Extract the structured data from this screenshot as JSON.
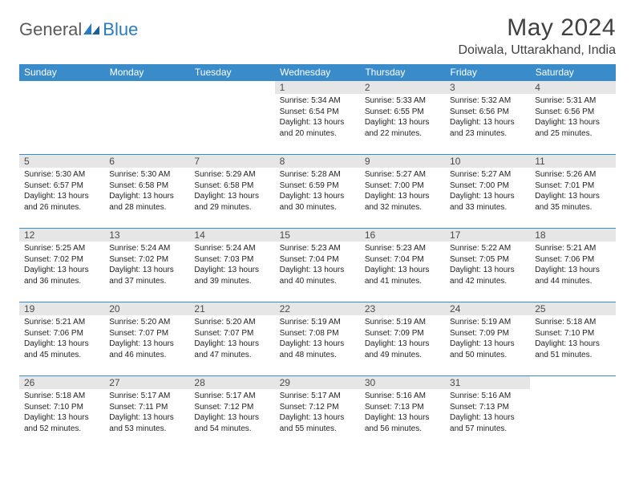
{
  "logo": {
    "text1": "General",
    "text2": "Blue"
  },
  "title": "May 2024",
  "location": "Doiwala, Uttarakhand, India",
  "colors": {
    "header_bg": "#3a8bc9",
    "header_fg": "#ffffff",
    "daynum_bg": "#e6e6e6",
    "border": "#3a8bc9",
    "logo_gray": "#5a5a5a",
    "logo_blue": "#2b7bbf"
  },
  "day_headers": [
    "Sunday",
    "Monday",
    "Tuesday",
    "Wednesday",
    "Thursday",
    "Friday",
    "Saturday"
  ],
  "weeks": [
    [
      {
        "day": "",
        "sunrise": "",
        "sunset": "",
        "daylight": ""
      },
      {
        "day": "",
        "sunrise": "",
        "sunset": "",
        "daylight": ""
      },
      {
        "day": "",
        "sunrise": "",
        "sunset": "",
        "daylight": ""
      },
      {
        "day": "1",
        "sunrise": "Sunrise: 5:34 AM",
        "sunset": "Sunset: 6:54 PM",
        "daylight": "Daylight: 13 hours and 20 minutes."
      },
      {
        "day": "2",
        "sunrise": "Sunrise: 5:33 AM",
        "sunset": "Sunset: 6:55 PM",
        "daylight": "Daylight: 13 hours and 22 minutes."
      },
      {
        "day": "3",
        "sunrise": "Sunrise: 5:32 AM",
        "sunset": "Sunset: 6:56 PM",
        "daylight": "Daylight: 13 hours and 23 minutes."
      },
      {
        "day": "4",
        "sunrise": "Sunrise: 5:31 AM",
        "sunset": "Sunset: 6:56 PM",
        "daylight": "Daylight: 13 hours and 25 minutes."
      }
    ],
    [
      {
        "day": "5",
        "sunrise": "Sunrise: 5:30 AM",
        "sunset": "Sunset: 6:57 PM",
        "daylight": "Daylight: 13 hours and 26 minutes."
      },
      {
        "day": "6",
        "sunrise": "Sunrise: 5:30 AM",
        "sunset": "Sunset: 6:58 PM",
        "daylight": "Daylight: 13 hours and 28 minutes."
      },
      {
        "day": "7",
        "sunrise": "Sunrise: 5:29 AM",
        "sunset": "Sunset: 6:58 PM",
        "daylight": "Daylight: 13 hours and 29 minutes."
      },
      {
        "day": "8",
        "sunrise": "Sunrise: 5:28 AM",
        "sunset": "Sunset: 6:59 PM",
        "daylight": "Daylight: 13 hours and 30 minutes."
      },
      {
        "day": "9",
        "sunrise": "Sunrise: 5:27 AM",
        "sunset": "Sunset: 7:00 PM",
        "daylight": "Daylight: 13 hours and 32 minutes."
      },
      {
        "day": "10",
        "sunrise": "Sunrise: 5:27 AM",
        "sunset": "Sunset: 7:00 PM",
        "daylight": "Daylight: 13 hours and 33 minutes."
      },
      {
        "day": "11",
        "sunrise": "Sunrise: 5:26 AM",
        "sunset": "Sunset: 7:01 PM",
        "daylight": "Daylight: 13 hours and 35 minutes."
      }
    ],
    [
      {
        "day": "12",
        "sunrise": "Sunrise: 5:25 AM",
        "sunset": "Sunset: 7:02 PM",
        "daylight": "Daylight: 13 hours and 36 minutes."
      },
      {
        "day": "13",
        "sunrise": "Sunrise: 5:24 AM",
        "sunset": "Sunset: 7:02 PM",
        "daylight": "Daylight: 13 hours and 37 minutes."
      },
      {
        "day": "14",
        "sunrise": "Sunrise: 5:24 AM",
        "sunset": "Sunset: 7:03 PM",
        "daylight": "Daylight: 13 hours and 39 minutes."
      },
      {
        "day": "15",
        "sunrise": "Sunrise: 5:23 AM",
        "sunset": "Sunset: 7:04 PM",
        "daylight": "Daylight: 13 hours and 40 minutes."
      },
      {
        "day": "16",
        "sunrise": "Sunrise: 5:23 AM",
        "sunset": "Sunset: 7:04 PM",
        "daylight": "Daylight: 13 hours and 41 minutes."
      },
      {
        "day": "17",
        "sunrise": "Sunrise: 5:22 AM",
        "sunset": "Sunset: 7:05 PM",
        "daylight": "Daylight: 13 hours and 42 minutes."
      },
      {
        "day": "18",
        "sunrise": "Sunrise: 5:21 AM",
        "sunset": "Sunset: 7:06 PM",
        "daylight": "Daylight: 13 hours and 44 minutes."
      }
    ],
    [
      {
        "day": "19",
        "sunrise": "Sunrise: 5:21 AM",
        "sunset": "Sunset: 7:06 PM",
        "daylight": "Daylight: 13 hours and 45 minutes."
      },
      {
        "day": "20",
        "sunrise": "Sunrise: 5:20 AM",
        "sunset": "Sunset: 7:07 PM",
        "daylight": "Daylight: 13 hours and 46 minutes."
      },
      {
        "day": "21",
        "sunrise": "Sunrise: 5:20 AM",
        "sunset": "Sunset: 7:07 PM",
        "daylight": "Daylight: 13 hours and 47 minutes."
      },
      {
        "day": "22",
        "sunrise": "Sunrise: 5:19 AM",
        "sunset": "Sunset: 7:08 PM",
        "daylight": "Daylight: 13 hours and 48 minutes."
      },
      {
        "day": "23",
        "sunrise": "Sunrise: 5:19 AM",
        "sunset": "Sunset: 7:09 PM",
        "daylight": "Daylight: 13 hours and 49 minutes."
      },
      {
        "day": "24",
        "sunrise": "Sunrise: 5:19 AM",
        "sunset": "Sunset: 7:09 PM",
        "daylight": "Daylight: 13 hours and 50 minutes."
      },
      {
        "day": "25",
        "sunrise": "Sunrise: 5:18 AM",
        "sunset": "Sunset: 7:10 PM",
        "daylight": "Daylight: 13 hours and 51 minutes."
      }
    ],
    [
      {
        "day": "26",
        "sunrise": "Sunrise: 5:18 AM",
        "sunset": "Sunset: 7:10 PM",
        "daylight": "Daylight: 13 hours and 52 minutes."
      },
      {
        "day": "27",
        "sunrise": "Sunrise: 5:17 AM",
        "sunset": "Sunset: 7:11 PM",
        "daylight": "Daylight: 13 hours and 53 minutes."
      },
      {
        "day": "28",
        "sunrise": "Sunrise: 5:17 AM",
        "sunset": "Sunset: 7:12 PM",
        "daylight": "Daylight: 13 hours and 54 minutes."
      },
      {
        "day": "29",
        "sunrise": "Sunrise: 5:17 AM",
        "sunset": "Sunset: 7:12 PM",
        "daylight": "Daylight: 13 hours and 55 minutes."
      },
      {
        "day": "30",
        "sunrise": "Sunrise: 5:16 AM",
        "sunset": "Sunset: 7:13 PM",
        "daylight": "Daylight: 13 hours and 56 minutes."
      },
      {
        "day": "31",
        "sunrise": "Sunrise: 5:16 AM",
        "sunset": "Sunset: 7:13 PM",
        "daylight": "Daylight: 13 hours and 57 minutes."
      },
      {
        "day": "",
        "sunrise": "",
        "sunset": "",
        "daylight": ""
      }
    ]
  ]
}
